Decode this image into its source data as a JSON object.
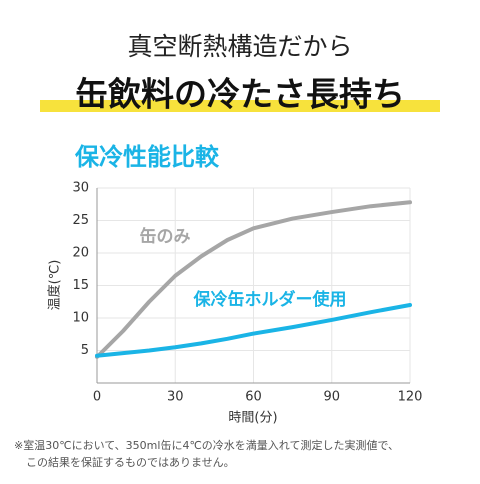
{
  "header": {
    "subtitle": "真空断熱構造だから",
    "title": "缶飲料の冷たさ長持ち"
  },
  "chart_data": {
    "type": "line",
    "title": "保冷性能比較",
    "y_label": "温度(℃)",
    "x_label": "時間(分)",
    "x": [
      0,
      10,
      20,
      30,
      40,
      50,
      60,
      75,
      90,
      105,
      120
    ],
    "series": [
      {
        "name": "缶のみ",
        "color": "#a6a6a6",
        "values": [
          4,
          8,
          12.5,
          16.5,
          19.5,
          22,
          23.8,
          25.3,
          26.3,
          27.2,
          27.8
        ]
      },
      {
        "name": "保冷缶ホルダー使用",
        "color": "#1ab4e6",
        "values": [
          4.2,
          4.6,
          5,
          5.5,
          6.1,
          6.8,
          7.6,
          8.6,
          9.7,
          10.9,
          12
        ]
      }
    ],
    "xlim": [
      0,
      120
    ],
    "xticks": [
      0,
      30,
      60,
      90,
      120
    ],
    "ylim": [
      0,
      30
    ],
    "yticks": [
      5,
      10,
      15,
      20,
      25,
      30
    ],
    "grid": true
  },
  "footnote": [
    "※室温30℃において、350ml缶に4℃の冷水を満量入れて測定した実測値で、",
    "この結果を保証するものではありません。"
  ]
}
